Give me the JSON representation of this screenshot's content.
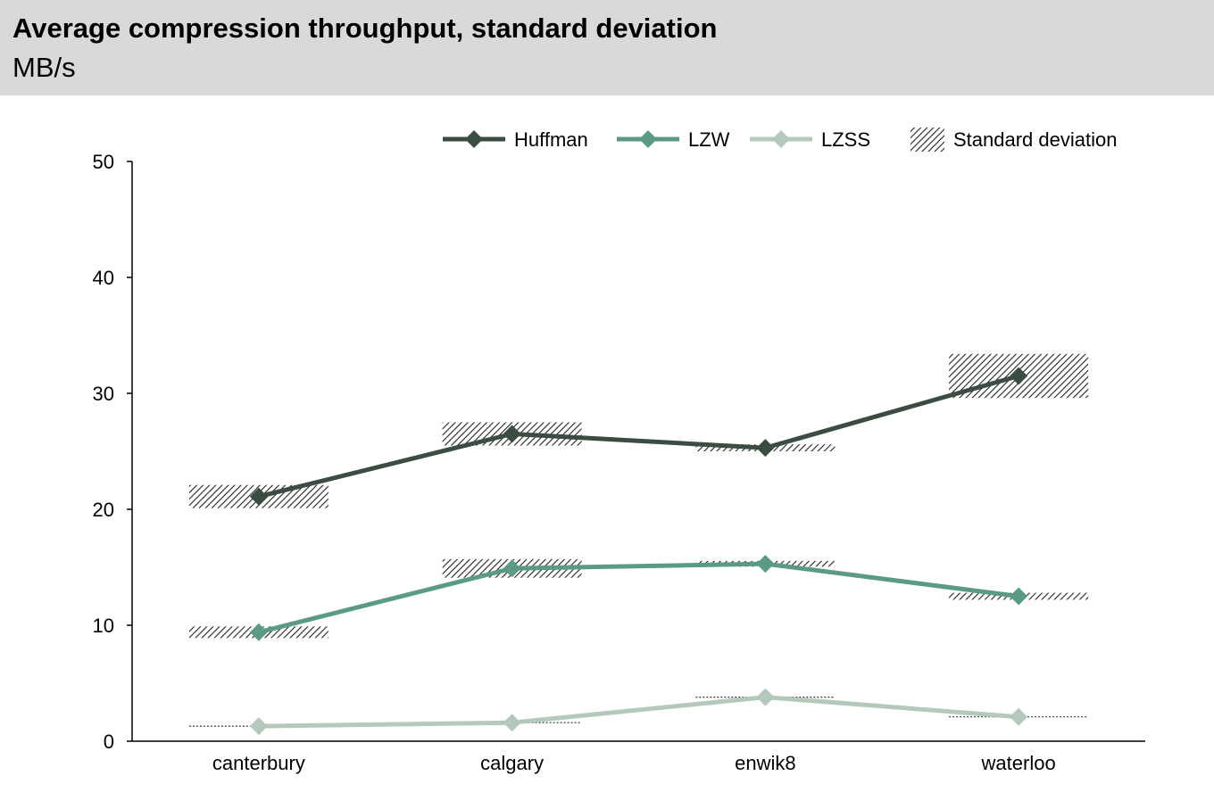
{
  "header": {
    "title": "Average compression throughput, standard deviation",
    "subtitle": "MB/s"
  },
  "chart_data": {
    "type": "line",
    "title": "Average compression throughput, standard deviation",
    "subtitle": "MB/s",
    "categories": [
      "canterbury",
      "calgary",
      "enwik8",
      "waterloo"
    ],
    "ylim": [
      0,
      50
    ],
    "yticks": [
      0,
      10,
      20,
      30,
      40,
      50
    ],
    "grid": false,
    "legend_position": "top-right",
    "series": [
      {
        "name": "Huffman",
        "color": "#3b4c43",
        "values": [
          21.1,
          26.5,
          25.3,
          31.5
        ],
        "std": [
          1.0,
          1.0,
          0.3,
          1.9
        ]
      },
      {
        "name": "LZW",
        "color": "#5b9a85",
        "values": [
          9.4,
          14.9,
          15.3,
          12.5
        ],
        "std": [
          0.5,
          0.8,
          0.25,
          0.3
        ]
      },
      {
        "name": "LZSS",
        "color": "#b4c9bc",
        "values": [
          1.3,
          1.6,
          3.8,
          2.1
        ],
        "std": [
          0.05,
          0.05,
          0.05,
          0.05
        ]
      }
    ],
    "std_legend_label": "Standard deviation"
  }
}
